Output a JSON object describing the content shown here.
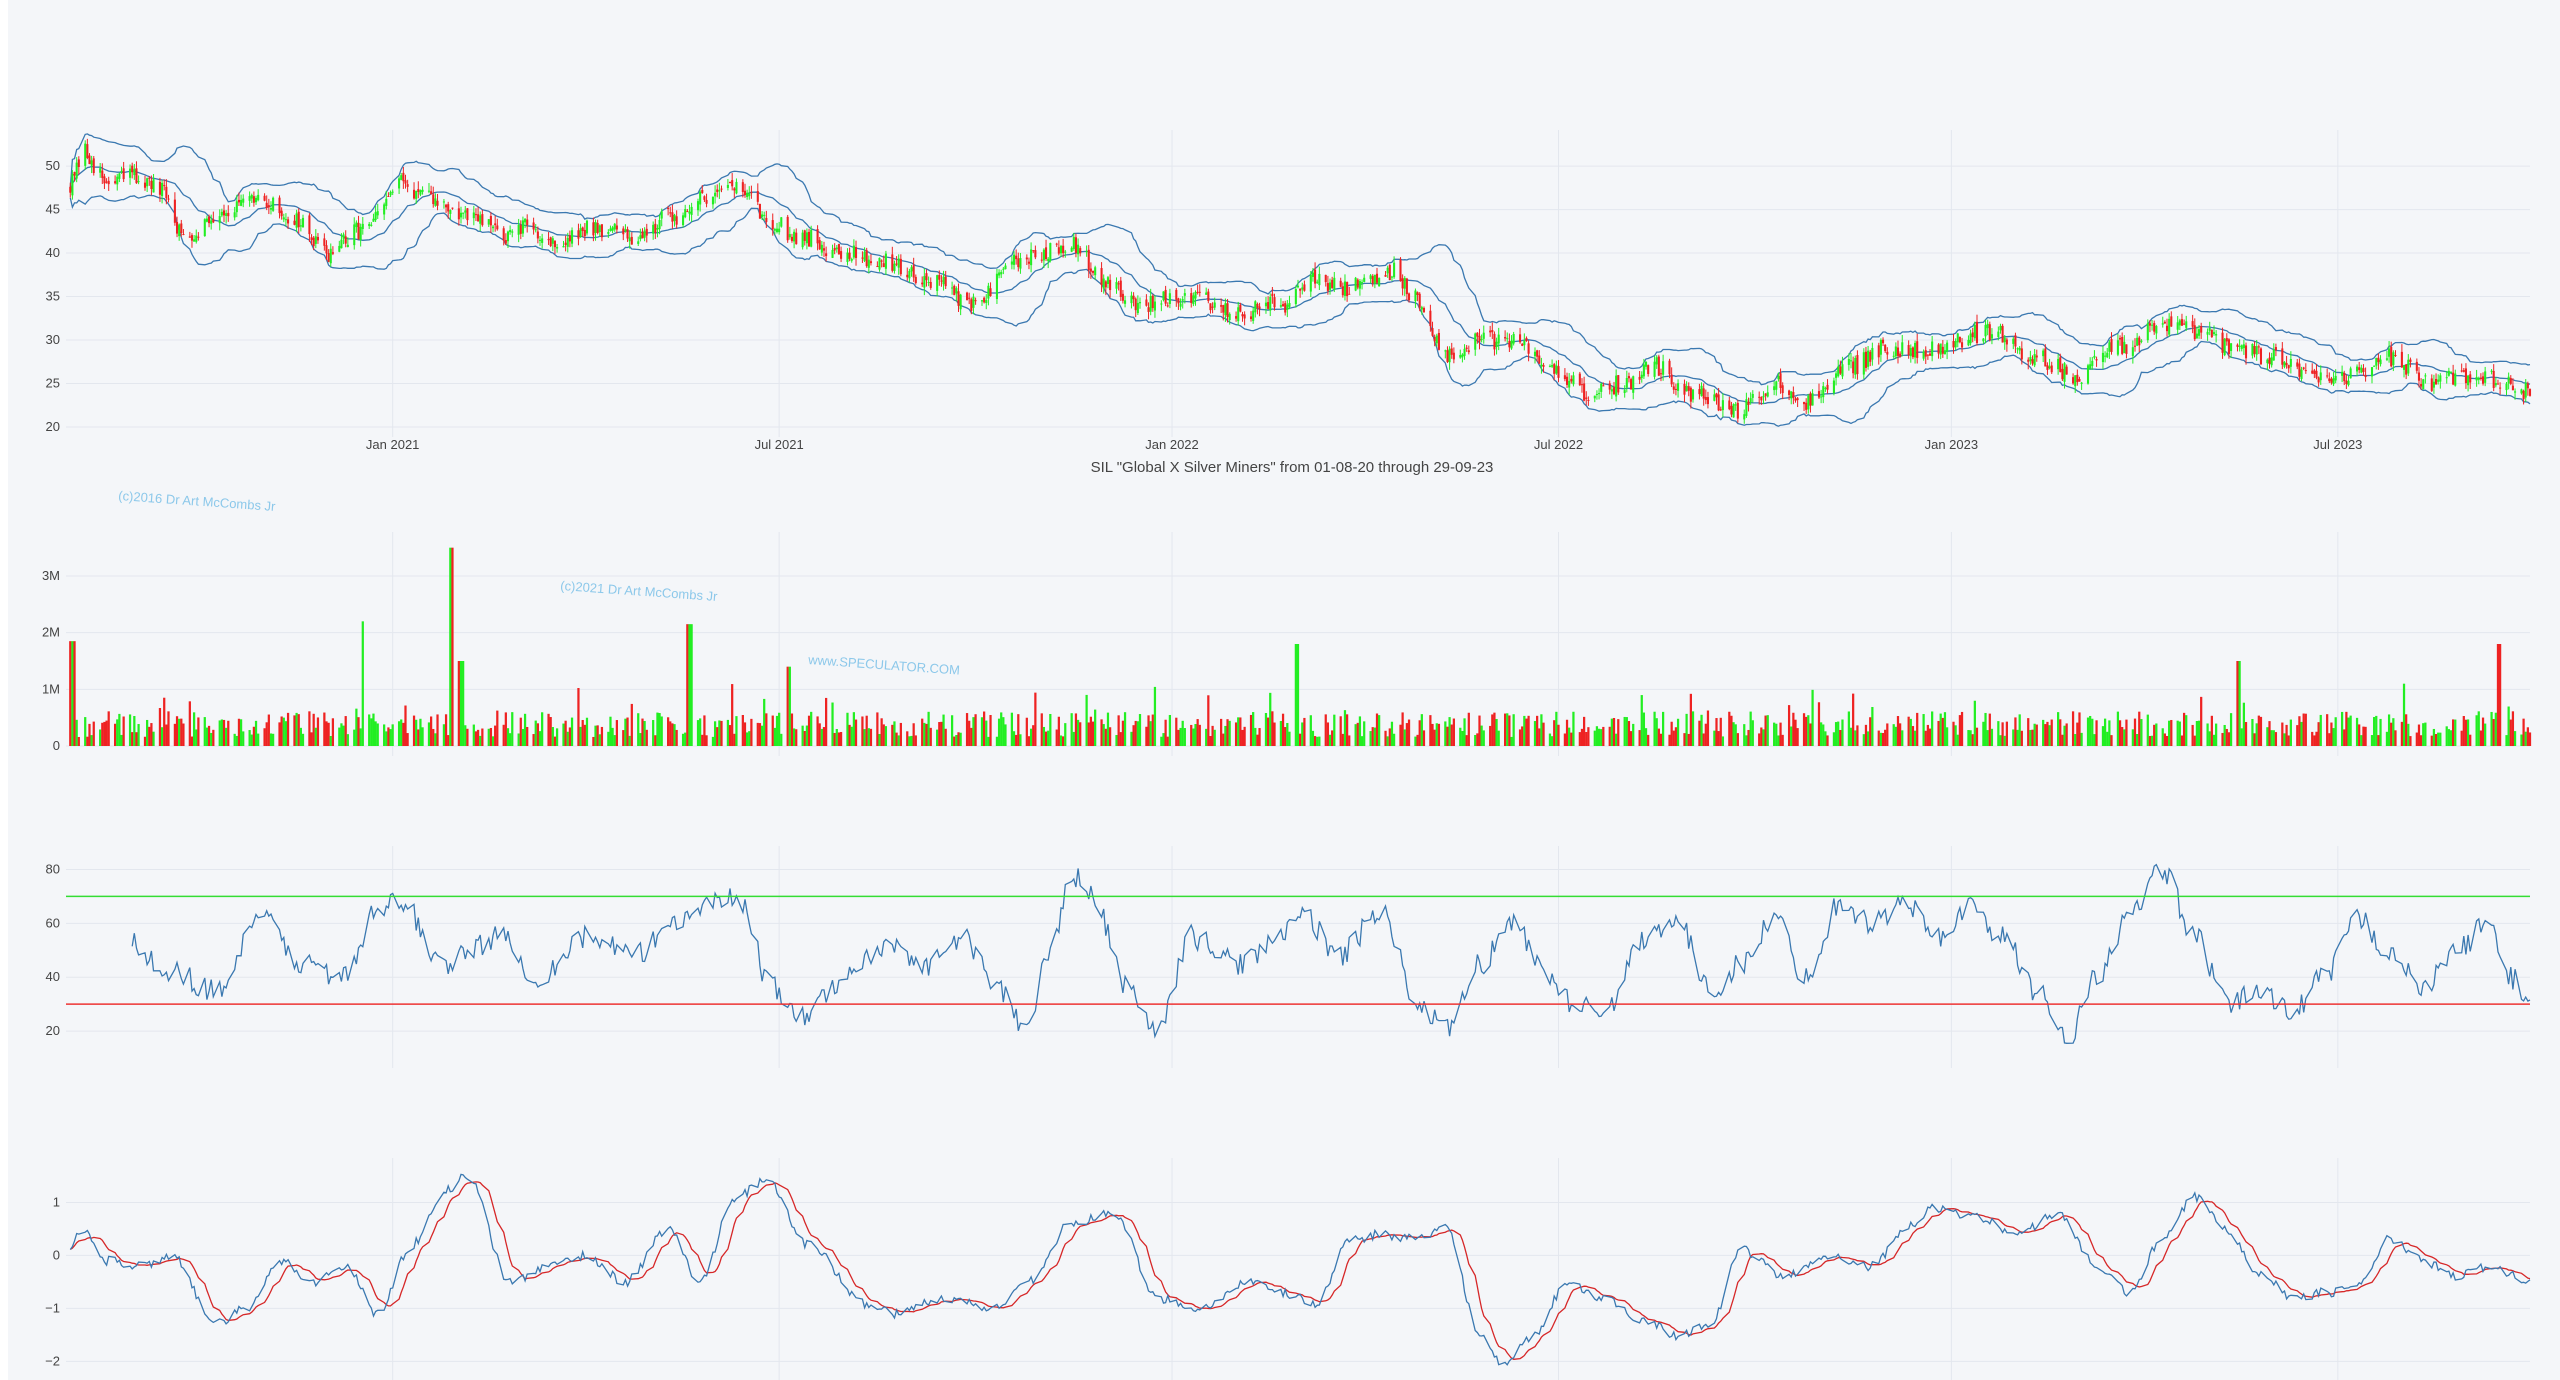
{
  "chart_data": {
    "title": "SIL \"Global X Silver Miners\" from 01-08-20 through 29-09-23",
    "watermarks": [
      "(c)2016 Dr Art McCombs Jr",
      "(c)2021 Dr Art McCombs Jr",
      "www.SPECULATOR.COM"
    ],
    "x_axis": {
      "range": [
        "2020-08-01",
        "2023-09-29"
      ],
      "tick_labels": [
        "Jan 2021",
        "Jul 2021",
        "Jan 2022",
        "Jul 2022",
        "Jan 2023",
        "Jul 2023"
      ],
      "tick_dates": [
        "2021-01-01",
        "2021-07-01",
        "2022-01-01",
        "2022-07-01",
        "2023-01-01",
        "2023-07-01"
      ]
    },
    "colors": {
      "up": "#22ee22",
      "down": "#ee2222",
      "line": "#3a78b0",
      "signal": "#d62728",
      "overbought": "#33dd33",
      "oversold": "#ee3333"
    },
    "price_anchors": [
      {
        "date": "2020-08-03",
        "close": 48
      },
      {
        "date": "2020-08-10",
        "close": 51.5
      },
      {
        "date": "2020-08-20",
        "close": 48
      },
      {
        "date": "2020-09-01",
        "close": 49
      },
      {
        "date": "2020-09-15",
        "close": 47
      },
      {
        "date": "2020-09-25",
        "close": 42
      },
      {
        "date": "2020-10-15",
        "close": 45
      },
      {
        "date": "2020-11-01",
        "close": 46
      },
      {
        "date": "2020-11-15",
        "close": 44
      },
      {
        "date": "2020-12-01",
        "close": 40
      },
      {
        "date": "2020-12-20",
        "close": 43
      },
      {
        "date": "2021-01-05",
        "close": 48
      },
      {
        "date": "2021-01-20",
        "close": 46
      },
      {
        "date": "2021-02-05",
        "close": 44
      },
      {
        "date": "2021-02-25",
        "close": 42
      },
      {
        "date": "2021-03-05",
        "close": 43
      },
      {
        "date": "2021-03-20",
        "close": 41
      },
      {
        "date": "2021-04-05",
        "close": 43
      },
      {
        "date": "2021-04-25",
        "close": 42
      },
      {
        "date": "2021-05-10",
        "close": 44
      },
      {
        "date": "2021-05-25",
        "close": 46
      },
      {
        "date": "2021-06-05",
        "close": 48
      },
      {
        "date": "2021-06-15",
        "close": 47
      },
      {
        "date": "2021-06-25",
        "close": 44
      },
      {
        "date": "2021-07-10",
        "close": 42
      },
      {
        "date": "2021-08-01",
        "close": 40
      },
      {
        "date": "2021-08-20",
        "close": 39
      },
      {
        "date": "2021-09-10",
        "close": 37
      },
      {
        "date": "2021-09-30",
        "close": 34
      },
      {
        "date": "2021-10-20",
        "close": 39
      },
      {
        "date": "2021-11-15",
        "close": 41
      },
      {
        "date": "2021-12-01",
        "close": 37
      },
      {
        "date": "2021-12-15",
        "close": 34
      },
      {
        "date": "2022-01-10",
        "close": 35
      },
      {
        "date": "2022-02-01",
        "close": 33
      },
      {
        "date": "2022-02-20",
        "close": 34
      },
      {
        "date": "2022-03-10",
        "close": 37
      },
      {
        "date": "2022-03-25",
        "close": 36
      },
      {
        "date": "2022-04-15",
        "close": 38
      },
      {
        "date": "2022-04-25",
        "close": 35
      },
      {
        "date": "2022-05-10",
        "close": 28
      },
      {
        "date": "2022-05-25",
        "close": 30
      },
      {
        "date": "2022-06-10",
        "close": 30
      },
      {
        "date": "2022-06-25",
        "close": 27
      },
      {
        "date": "2022-07-15",
        "close": 24
      },
      {
        "date": "2022-08-01",
        "close": 25
      },
      {
        "date": "2022-08-15",
        "close": 27
      },
      {
        "date": "2022-09-01",
        "close": 24
      },
      {
        "date": "2022-09-25",
        "close": 22
      },
      {
        "date": "2022-10-10",
        "close": 25
      },
      {
        "date": "2022-10-25",
        "close": 23
      },
      {
        "date": "2022-11-15",
        "close": 27
      },
      {
        "date": "2022-12-01",
        "close": 29
      },
      {
        "date": "2022-12-20",
        "close": 29
      },
      {
        "date": "2023-01-20",
        "close": 31
      },
      {
        "date": "2023-02-10",
        "close": 28
      },
      {
        "date": "2023-02-28",
        "close": 26
      },
      {
        "date": "2023-03-20",
        "close": 29
      },
      {
        "date": "2023-04-10",
        "close": 32
      },
      {
        "date": "2023-04-25",
        "close": 31
      },
      {
        "date": "2023-05-15",
        "close": 29
      },
      {
        "date": "2023-06-01",
        "close": 28
      },
      {
        "date": "2023-06-20",
        "close": 26
      },
      {
        "date": "2023-07-10",
        "close": 26
      },
      {
        "date": "2023-07-25",
        "close": 28
      },
      {
        "date": "2023-08-15",
        "close": 25
      },
      {
        "date": "2023-09-01",
        "close": 26
      },
      {
        "date": "2023-09-20",
        "close": 25
      },
      {
        "date": "2023-09-29",
        "close": 24
      }
    ],
    "panels": [
      {
        "id": "price",
        "type": "candlestick",
        "indicators": [
          "bollinger-upper",
          "bollinger-middle",
          "bollinger-lower"
        ],
        "ylim": [
          20,
          53
        ],
        "y_ticks": [
          20,
          25,
          30,
          35,
          40,
          45,
          50
        ],
        "y_tick_labels": [
          "20",
          "25",
          "30",
          "35",
          "40",
          "45",
          "50"
        ]
      },
      {
        "id": "volume",
        "type": "bar",
        "ylim": [
          0,
          3600000
        ],
        "y_ticks": [
          0,
          1000000,
          2000000,
          3000000
        ],
        "y_tick_labels": [
          "0",
          "1M",
          "2M",
          "3M"
        ],
        "typical_volume": 350000,
        "volume_spikes": [
          {
            "date": "2020-08-04",
            "volume": 1850000
          },
          {
            "date": "2020-12-19",
            "volume": 2200000
          },
          {
            "date": "2021-01-29",
            "volume": 3500000
          },
          {
            "date": "2021-02-02",
            "volume": 1500000
          },
          {
            "date": "2021-05-20",
            "volume": 2150000
          },
          {
            "date": "2021-07-05",
            "volume": 1400000
          },
          {
            "date": "2022-02-28",
            "volume": 1800000
          },
          {
            "date": "2023-05-15",
            "volume": 1500000
          },
          {
            "date": "2023-09-15",
            "volume": 1800000
          }
        ]
      },
      {
        "id": "rsi",
        "type": "line",
        "ylim": [
          10,
          85
        ],
        "y_ticks": [
          20,
          40,
          60,
          80
        ],
        "y_tick_labels": [
          "20",
          "40",
          "60",
          "80"
        ],
        "overbought": 70,
        "oversold": 30,
        "start": "2020-09-01",
        "anchors": [
          {
            "date": "2020-09-01",
            "value": 52
          },
          {
            "date": "2020-09-20",
            "value": 42
          },
          {
            "date": "2020-10-10",
            "value": 35
          },
          {
            "date": "2020-11-01",
            "value": 62
          },
          {
            "date": "2020-11-20",
            "value": 45
          },
          {
            "date": "2020-12-10",
            "value": 40
          },
          {
            "date": "2020-12-25",
            "value": 65
          },
          {
            "date": "2021-01-05",
            "value": 68
          },
          {
            "date": "2021-01-25",
            "value": 45
          },
          {
            "date": "2021-02-20",
            "value": 55
          },
          {
            "date": "2021-03-10",
            "value": 40
          },
          {
            "date": "2021-04-01",
            "value": 55
          },
          {
            "date": "2021-04-25",
            "value": 48
          },
          {
            "date": "2021-05-15",
            "value": 62
          },
          {
            "date": "2021-06-05",
            "value": 70
          },
          {
            "date": "2021-06-15",
            "value": 66
          },
          {
            "date": "2021-06-25",
            "value": 40
          },
          {
            "date": "2021-07-10",
            "value": 24
          },
          {
            "date": "2021-08-01",
            "value": 40
          },
          {
            "date": "2021-08-20",
            "value": 52
          },
          {
            "date": "2021-09-10",
            "value": 45
          },
          {
            "date": "2021-09-25",
            "value": 55
          },
          {
            "date": "2021-10-10",
            "value": 38
          },
          {
            "date": "2021-10-25",
            "value": 20
          },
          {
            "date": "2021-11-05",
            "value": 50
          },
          {
            "date": "2021-11-15",
            "value": 78
          },
          {
            "date": "2021-11-25",
            "value": 70
          },
          {
            "date": "2021-12-10",
            "value": 38
          },
          {
            "date": "2021-12-25",
            "value": 20
          },
          {
            "date": "2022-01-10",
            "value": 55
          },
          {
            "date": "2022-02-01",
            "value": 45
          },
          {
            "date": "2022-02-20",
            "value": 55
          },
          {
            "date": "2022-03-05",
            "value": 62
          },
          {
            "date": "2022-03-20",
            "value": 48
          },
          {
            "date": "2022-04-10",
            "value": 65
          },
          {
            "date": "2022-04-25",
            "value": 30
          },
          {
            "date": "2022-05-10",
            "value": 20
          },
          {
            "date": "2022-05-25",
            "value": 45
          },
          {
            "date": "2022-06-10",
            "value": 60
          },
          {
            "date": "2022-06-25",
            "value": 42
          },
          {
            "date": "2022-07-10",
            "value": 28
          },
          {
            "date": "2022-07-25",
            "value": 30
          },
          {
            "date": "2022-08-10",
            "value": 55
          },
          {
            "date": "2022-08-25",
            "value": 62
          },
          {
            "date": "2022-09-10",
            "value": 35
          },
          {
            "date": "2022-09-25",
            "value": 45
          },
          {
            "date": "2022-10-10",
            "value": 62
          },
          {
            "date": "2022-10-25",
            "value": 40
          },
          {
            "date": "2022-11-10",
            "value": 68
          },
          {
            "date": "2022-11-25",
            "value": 60
          },
          {
            "date": "2022-12-10",
            "value": 68
          },
          {
            "date": "2022-12-25",
            "value": 55
          },
          {
            "date": "2023-01-10",
            "value": 66
          },
          {
            "date": "2023-01-25",
            "value": 55
          },
          {
            "date": "2023-02-10",
            "value": 35
          },
          {
            "date": "2023-02-25",
            "value": 18
          },
          {
            "date": "2023-03-10",
            "value": 40
          },
          {
            "date": "2023-03-25",
            "value": 62
          },
          {
            "date": "2023-04-10",
            "value": 80
          },
          {
            "date": "2023-04-25",
            "value": 55
          },
          {
            "date": "2023-05-10",
            "value": 30
          },
          {
            "date": "2023-05-25",
            "value": 35
          },
          {
            "date": "2023-06-10",
            "value": 28
          },
          {
            "date": "2023-06-25",
            "value": 40
          },
          {
            "date": "2023-07-10",
            "value": 62
          },
          {
            "date": "2023-07-25",
            "value": 50
          },
          {
            "date": "2023-08-10",
            "value": 35
          },
          {
            "date": "2023-08-25",
            "value": 50
          },
          {
            "date": "2023-09-10",
            "value": 60
          },
          {
            "date": "2023-09-20",
            "value": 40
          },
          {
            "date": "2023-09-29",
            "value": 30
          }
        ]
      },
      {
        "id": "oscillator",
        "type": "line",
        "series_count": 2,
        "ylim": [
          -2.2,
          1.65
        ],
        "y_ticks": [
          -2,
          -1,
          0,
          1
        ],
        "y_tick_labels": [
          "−2",
          "−1",
          "0",
          "1"
        ],
        "anchors": [
          {
            "date": "2020-08-01",
            "value": 0
          },
          {
            "date": "2020-08-08",
            "value": 0.5
          },
          {
            "date": "2020-08-20",
            "value": -0.1
          },
          {
            "date": "2020-09-05",
            "value": -0.2
          },
          {
            "date": "2020-09-20",
            "value": 0
          },
          {
            "date": "2020-10-10",
            "value": -1.3
          },
          {
            "date": "2020-10-25",
            "value": -1.0
          },
          {
            "date": "2020-11-10",
            "value": -0.1
          },
          {
            "date": "2020-11-25",
            "value": -0.5
          },
          {
            "date": "2020-12-10",
            "value": -0.2
          },
          {
            "date": "2020-12-25",
            "value": -1.1
          },
          {
            "date": "2021-01-10",
            "value": 0.2
          },
          {
            "date": "2021-01-25",
            "value": 1.2
          },
          {
            "date": "2021-02-05",
            "value": 1.5
          },
          {
            "date": "2021-02-25",
            "value": -0.5
          },
          {
            "date": "2021-03-15",
            "value": -0.2
          },
          {
            "date": "2021-04-01",
            "value": 0
          },
          {
            "date": "2021-04-20",
            "value": -0.5
          },
          {
            "date": "2021-05-10",
            "value": 0.5
          },
          {
            "date": "2021-05-25",
            "value": -0.5
          },
          {
            "date": "2021-06-10",
            "value": 1.1
          },
          {
            "date": "2021-06-25",
            "value": 1.4
          },
          {
            "date": "2021-07-15",
            "value": 0.2
          },
          {
            "date": "2021-08-10",
            "value": -0.9
          },
          {
            "date": "2021-08-25",
            "value": -1.1
          },
          {
            "date": "2021-09-15",
            "value": -0.8
          },
          {
            "date": "2021-10-10",
            "value": -1.0
          },
          {
            "date": "2021-10-25",
            "value": -0.5
          },
          {
            "date": "2021-11-15",
            "value": 0.6
          },
          {
            "date": "2021-12-05",
            "value": 0.8
          },
          {
            "date": "2021-12-25",
            "value": -0.8
          },
          {
            "date": "2022-01-15",
            "value": -1.0
          },
          {
            "date": "2022-02-05",
            "value": -0.5
          },
          {
            "date": "2022-02-20",
            "value": -0.7
          },
          {
            "date": "2022-03-10",
            "value": -0.9
          },
          {
            "date": "2022-03-25",
            "value": 0.3
          },
          {
            "date": "2022-04-10",
            "value": 0.4
          },
          {
            "date": "2022-04-25",
            "value": 0.3
          },
          {
            "date": "2022-05-10",
            "value": 0.5
          },
          {
            "date": "2022-05-25",
            "value": -1.5
          },
          {
            "date": "2022-06-05",
            "value": -2.1
          },
          {
            "date": "2022-06-20",
            "value": -1.5
          },
          {
            "date": "2022-07-05",
            "value": -0.5
          },
          {
            "date": "2022-07-20",
            "value": -0.8
          },
          {
            "date": "2022-08-10",
            "value": -1.2
          },
          {
            "date": "2022-08-25",
            "value": -1.5
          },
          {
            "date": "2022-09-10",
            "value": -1.3
          },
          {
            "date": "2022-09-25",
            "value": 0.1
          },
          {
            "date": "2022-10-15",
            "value": -0.4
          },
          {
            "date": "2022-11-05",
            "value": 0
          },
          {
            "date": "2022-11-25",
            "value": -0.2
          },
          {
            "date": "2022-12-10",
            "value": 0.5
          },
          {
            "date": "2022-12-25",
            "value": 0.9
          },
          {
            "date": "2023-01-15",
            "value": 0.7
          },
          {
            "date": "2023-02-01",
            "value": 0.4
          },
          {
            "date": "2023-02-20",
            "value": 0.8
          },
          {
            "date": "2023-03-10",
            "value": -0.2
          },
          {
            "date": "2023-03-25",
            "value": -0.7
          },
          {
            "date": "2023-04-10",
            "value": 0.3
          },
          {
            "date": "2023-04-25",
            "value": 1.1
          },
          {
            "date": "2023-05-10",
            "value": 0.5
          },
          {
            "date": "2023-05-25",
            "value": -0.3
          },
          {
            "date": "2023-06-10",
            "value": -0.8
          },
          {
            "date": "2023-06-25",
            "value": -0.7
          },
          {
            "date": "2023-07-10",
            "value": -0.6
          },
          {
            "date": "2023-07-25",
            "value": 0.3
          },
          {
            "date": "2023-08-10",
            "value": -0.1
          },
          {
            "date": "2023-08-25",
            "value": -0.4
          },
          {
            "date": "2023-09-10",
            "value": -0.2
          },
          {
            "date": "2023-09-29",
            "value": -0.5
          }
        ]
      }
    ]
  }
}
